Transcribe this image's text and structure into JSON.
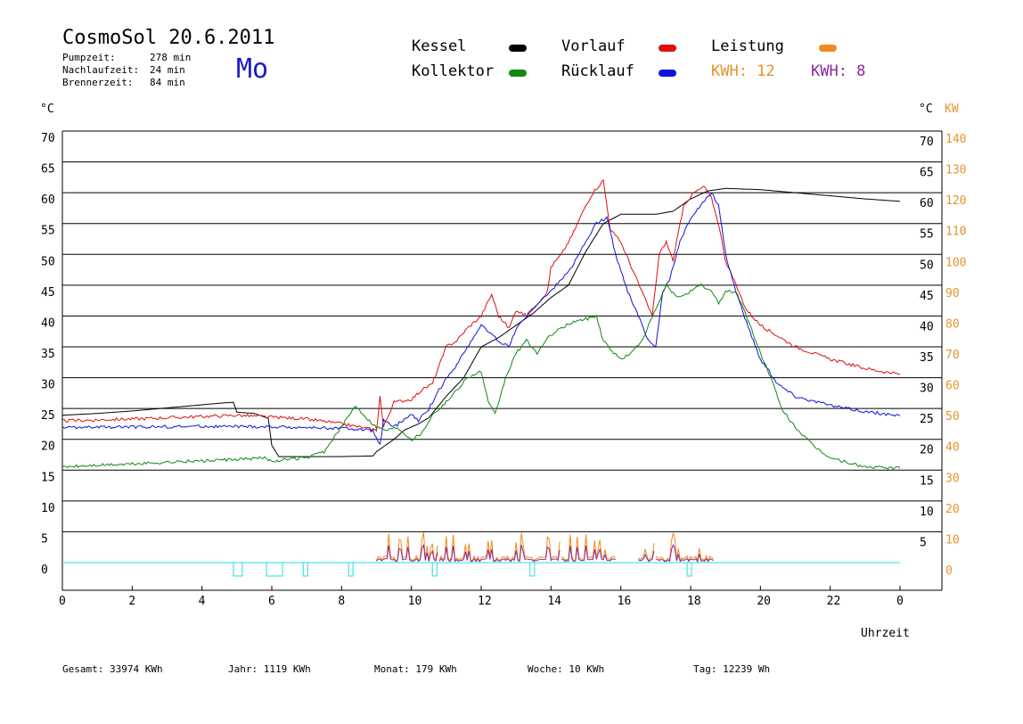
{
  "header": {
    "title": "CosmoSol 20.6.2011",
    "day": "Mo",
    "times": [
      {
        "label": "Pumpzeit:",
        "value": "278 min"
      },
      {
        "label": "Nachlaufzeit:",
        "value": "24 min"
      },
      {
        "label": "Brennerzeit:",
        "value": "84 min"
      }
    ]
  },
  "legend": [
    {
      "name": "Kessel",
      "color": "#000000"
    },
    {
      "name": "Vorlauf",
      "color": "#dd1111"
    },
    {
      "name": "Leistung",
      "color": "#f08a1c"
    },
    {
      "name": "Kollektor",
      "color": "#118811"
    },
    {
      "name": "Rücklauf",
      "color": "#1111dd"
    }
  ],
  "kwh": [
    {
      "text": "KWH: 12",
      "color": "#e8922a"
    },
    {
      "text": "KWH: 8",
      "color": "#8a2a9a"
    }
  ],
  "footer": [
    {
      "label": "Gesamt:",
      "value": "33974 KWh"
    },
    {
      "label": "Jahr:",
      "value": "1119 KWh"
    },
    {
      "label": "Monat:",
      "value": "179 KWh"
    },
    {
      "label": "Woche:",
      "value": "10 KWh"
    },
    {
      "label": "Tag:",
      "value": "12239 Wh"
    }
  ],
  "chart_data": {
    "type": "line",
    "xlabel": "Uhrzeit",
    "ylabel_left": "°C",
    "ylabel_right": "°C",
    "ylabel_right2": "KW",
    "x_ticks": [
      "0",
      "2",
      "4",
      "6",
      "8",
      "10",
      "12",
      "14",
      "16",
      "18",
      "20",
      "22",
      "0"
    ],
    "y_ticks": [
      0,
      5,
      10,
      15,
      20,
      25,
      30,
      35,
      40,
      45,
      50,
      55,
      60,
      65,
      70
    ],
    "y_ticks_right": [
      5,
      10,
      15,
      20,
      25,
      30,
      35,
      40,
      45,
      50,
      55,
      60,
      65,
      70
    ],
    "kw_ticks": [
      0,
      10,
      20,
      30,
      40,
      50,
      60,
      70,
      80,
      90,
      100,
      110,
      120,
      130,
      140
    ],
    "xlim": [
      0,
      24
    ],
    "ylim": [
      0,
      70
    ],
    "grid": true,
    "series": [
      {
        "name": "Kessel",
        "color": "#000000",
        "points": [
          [
            0,
            23.9
          ],
          [
            1,
            24.2
          ],
          [
            2,
            24.6
          ],
          [
            3,
            25.1
          ],
          [
            4,
            25.6
          ],
          [
            4.6,
            25.9
          ],
          [
            4.9,
            26
          ],
          [
            5,
            24.4
          ],
          [
            5.5,
            24.2
          ],
          [
            5.9,
            23.4
          ],
          [
            6,
            19
          ],
          [
            6.2,
            17.2
          ],
          [
            7,
            17.2
          ],
          [
            8,
            17.2
          ],
          [
            8.9,
            17.3
          ],
          [
            9,
            18
          ],
          [
            9.5,
            20
          ],
          [
            9.8,
            21.5
          ],
          [
            10,
            22
          ],
          [
            10.2,
            22.5
          ],
          [
            10.5,
            23.5
          ],
          [
            11,
            27
          ],
          [
            11.5,
            30
          ],
          [
            12,
            35
          ],
          [
            12.5,
            36.5
          ],
          [
            13,
            38.5
          ],
          [
            13.5,
            40.5
          ],
          [
            14,
            43
          ],
          [
            14.5,
            45
          ],
          [
            15,
            50.5
          ],
          [
            15.5,
            55
          ],
          [
            16,
            56.5
          ],
          [
            17,
            56.5
          ],
          [
            17.5,
            57
          ],
          [
            18,
            59
          ],
          [
            18.5,
            60.3
          ],
          [
            19,
            60.7
          ],
          [
            20,
            60.5
          ],
          [
            21,
            60
          ],
          [
            22,
            59.5
          ],
          [
            23,
            59
          ],
          [
            24,
            58.6
          ]
        ]
      },
      {
        "name": "Vorlauf",
        "color": "#dd1111",
        "points": [
          [
            0,
            23
          ],
          [
            2,
            23.3
          ],
          [
            4,
            23.7
          ],
          [
            5,
            23.9
          ],
          [
            6,
            23.6
          ],
          [
            7,
            23.3
          ],
          [
            8,
            22.5
          ],
          [
            9,
            21.5
          ],
          [
            9.1,
            27
          ],
          [
            9.2,
            22
          ],
          [
            9.5,
            26
          ],
          [
            10,
            26.5
          ],
          [
            10.3,
            28
          ],
          [
            10.6,
            29
          ],
          [
            10.8,
            32
          ],
          [
            11,
            35
          ],
          [
            11.3,
            36
          ],
          [
            11.6,
            38
          ],
          [
            12,
            40
          ],
          [
            12.3,
            43.5
          ],
          [
            12.5,
            40
          ],
          [
            12.8,
            38
          ],
          [
            13,
            41
          ],
          [
            13.3,
            40
          ],
          [
            13.6,
            42
          ],
          [
            13.9,
            44
          ],
          [
            14,
            48
          ],
          [
            14.3,
            50
          ],
          [
            14.6,
            53
          ],
          [
            15,
            58
          ],
          [
            15.2,
            60
          ],
          [
            15.5,
            62
          ],
          [
            15.7,
            54
          ],
          [
            16,
            52
          ],
          [
            16.3,
            48
          ],
          [
            16.6,
            44
          ],
          [
            16.9,
            40
          ],
          [
            17.1,
            50
          ],
          [
            17.3,
            52
          ],
          [
            17.5,
            49
          ],
          [
            17.8,
            58
          ],
          [
            18.1,
            60
          ],
          [
            18.4,
            61
          ],
          [
            18.6,
            59
          ],
          [
            18.8,
            55
          ],
          [
            19,
            49
          ],
          [
            19.3,
            45
          ],
          [
            19.6,
            41
          ],
          [
            20,
            38.5
          ],
          [
            21,
            35
          ],
          [
            22,
            33
          ],
          [
            23,
            31.5
          ],
          [
            24,
            30.5
          ]
        ]
      },
      {
        "name": "Rücklauf",
        "color": "#1111dd",
        "points": [
          [
            0,
            21.9
          ],
          [
            2,
            22
          ],
          [
            4,
            22.1
          ],
          [
            6,
            22
          ],
          [
            8,
            21.8
          ],
          [
            8.9,
            21.4
          ],
          [
            9.1,
            19
          ],
          [
            9.2,
            23
          ],
          [
            9.5,
            22
          ],
          [
            10,
            24
          ],
          [
            10.2,
            23
          ],
          [
            10.5,
            25
          ],
          [
            10.8,
            28
          ],
          [
            11,
            30
          ],
          [
            11.3,
            32
          ],
          [
            11.6,
            35
          ],
          [
            12,
            38.5
          ],
          [
            12.3,
            37
          ],
          [
            12.5,
            36
          ],
          [
            12.8,
            35
          ],
          [
            13,
            38
          ],
          [
            13.3,
            40
          ],
          [
            13.6,
            42
          ],
          [
            14,
            44
          ],
          [
            14.3,
            46
          ],
          [
            14.6,
            48
          ],
          [
            15,
            52
          ],
          [
            15.3,
            55
          ],
          [
            15.6,
            56
          ],
          [
            15.9,
            49
          ],
          [
            16.2,
            44
          ],
          [
            16.5,
            40
          ],
          [
            16.8,
            36
          ],
          [
            17,
            35
          ],
          [
            17.2,
            44
          ],
          [
            17.4,
            46
          ],
          [
            17.7,
            52
          ],
          [
            18,
            56
          ],
          [
            18.3,
            58
          ],
          [
            18.6,
            60
          ],
          [
            18.8,
            58
          ],
          [
            19,
            50
          ],
          [
            19.3,
            44
          ],
          [
            19.6,
            39
          ],
          [
            20,
            33
          ],
          [
            20.5,
            29
          ],
          [
            21,
            27
          ],
          [
            22,
            25.5
          ],
          [
            23,
            24.5
          ],
          [
            24,
            23.8
          ]
        ]
      },
      {
        "name": "Kollektor",
        "color": "#118811",
        "points": [
          [
            0,
            15.5
          ],
          [
            1,
            15.8
          ],
          [
            2,
            16
          ],
          [
            3,
            16.3
          ],
          [
            4,
            16.5
          ],
          [
            5,
            16.7
          ],
          [
            5.8,
            17
          ],
          [
            6,
            16.5
          ],
          [
            7,
            17
          ],
          [
            7.5,
            18
          ],
          [
            8,
            22
          ],
          [
            8.4,
            25.5
          ],
          [
            8.8,
            23
          ],
          [
            9,
            22
          ],
          [
            9.3,
            21.5
          ],
          [
            9.6,
            22
          ],
          [
            10,
            20
          ],
          [
            10.3,
            21
          ],
          [
            10.6,
            24
          ],
          [
            11,
            26
          ],
          [
            11.3,
            28
          ],
          [
            11.6,
            30
          ],
          [
            12,
            31
          ],
          [
            12.2,
            26
          ],
          [
            12.4,
            24
          ],
          [
            12.7,
            30
          ],
          [
            13,
            34
          ],
          [
            13.3,
            36
          ],
          [
            13.6,
            34
          ],
          [
            14,
            37
          ],
          [
            14.3,
            38
          ],
          [
            14.6,
            39
          ],
          [
            15,
            39.5
          ],
          [
            15.3,
            40
          ],
          [
            15.5,
            36
          ],
          [
            15.8,
            34
          ],
          [
            16,
            33
          ],
          [
            16.3,
            34
          ],
          [
            16.6,
            36
          ],
          [
            17,
            41
          ],
          [
            17.3,
            45
          ],
          [
            17.6,
            43
          ],
          [
            18,
            44
          ],
          [
            18.3,
            45
          ],
          [
            18.6,
            44
          ],
          [
            18.8,
            42
          ],
          [
            19,
            44
          ],
          [
            19.3,
            44
          ],
          [
            19.6,
            40
          ],
          [
            20,
            34
          ],
          [
            20.3,
            30
          ],
          [
            20.6,
            25
          ],
          [
            21,
            22
          ],
          [
            21.5,
            19
          ],
          [
            22,
            17
          ],
          [
            23,
            15.5
          ],
          [
            24,
            15.3
          ]
        ]
      }
    ],
    "bottom_series": {
      "segments": [
        [
          9.0,
          10.8
        ],
        [
          10.8,
          14.3
        ],
        [
          14.3,
          15.9
        ],
        [
          16.5,
          17.0
        ],
        [
          17.0,
          18.7
        ]
      ],
      "markers": [
        4.9,
        5.85,
        6.9,
        8.2,
        10.6,
        13.4,
        17.9
      ]
    }
  }
}
